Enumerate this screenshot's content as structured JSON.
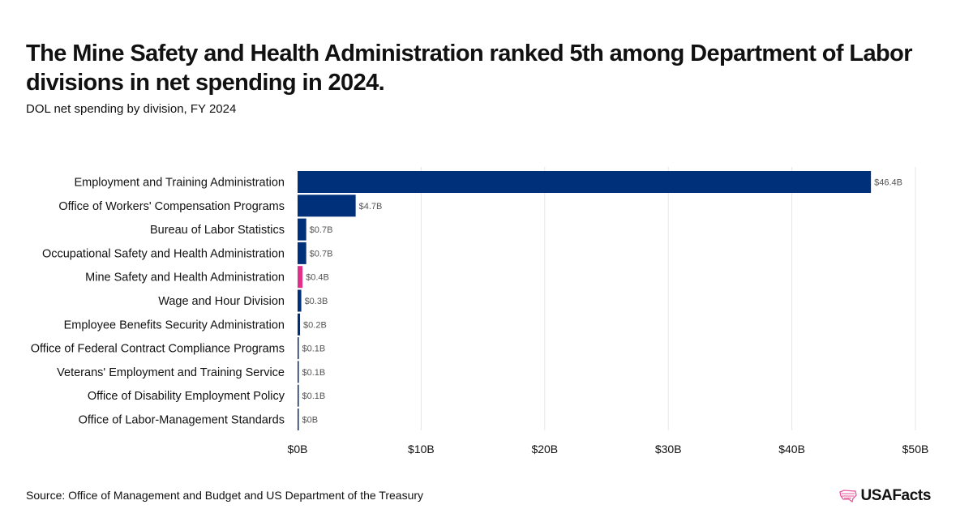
{
  "header": {
    "title": "The Mine Safety and Health Administration ranked 5th among Department of Labor divisions in net spending in 2024.",
    "subtitle": "DOL net spending by division, FY 2024"
  },
  "footer": {
    "source": "Source: Office of Management and Budget and US Department of the Treasury",
    "logo_text": "USAFacts",
    "logo_icon": "usa-map-icon"
  },
  "colors": {
    "default_bar": "#00307a",
    "highlight_bar": "#e0308a",
    "grid": "#e6e6e6",
    "text": "#111111",
    "value_label": "#555555",
    "logo_icon": "#e8559a"
  },
  "chart_data": {
    "type": "bar",
    "orientation": "horizontal",
    "categories": [
      "Employment and Training Administration",
      "Office of Workers' Compensation Programs",
      "Bureau of Labor Statistics",
      "Occupational Safety and Health Administration",
      "Mine Safety and Health Administration",
      "Wage and Hour Division",
      "Employee Benefits Security Administration",
      "Office of Federal Contract Compliance Programs",
      "Veterans' Employment and Training Service",
      "Office of Disability Employment Policy",
      "Office of Labor-Management Standards"
    ],
    "values": [
      46.4,
      4.7,
      0.7,
      0.7,
      0.4,
      0.3,
      0.2,
      0.1,
      0.1,
      0.1,
      0.0
    ],
    "value_labels": [
      "$46.4B",
      "$4.7B",
      "$0.7B",
      "$0.7B",
      "$0.4B",
      "$0.3B",
      "$0.2B",
      "$0.1B",
      "$0.1B",
      "$0.1B",
      "$0B"
    ],
    "highlight_category": "Mine Safety and Health Administration",
    "xlim": [
      0,
      50
    ],
    "xticks": [
      0,
      10,
      20,
      30,
      40,
      50
    ],
    "xtick_labels": [
      "$0B",
      "$10B",
      "$20B",
      "$30B",
      "$40B",
      "$50B"
    ],
    "grid": true,
    "legend": "none"
  }
}
